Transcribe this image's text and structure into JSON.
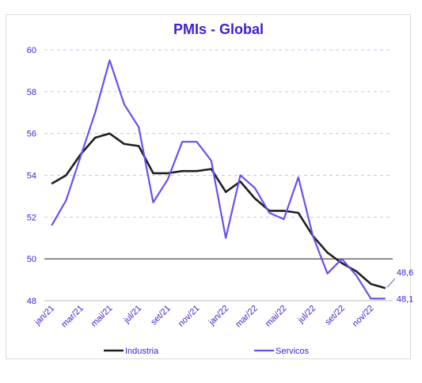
{
  "chart_data": {
    "type": "line",
    "title": "PMIs - Global",
    "xlabel": "",
    "ylabel": "",
    "ylim": [
      48,
      60
    ],
    "yticks": [
      48,
      50,
      52,
      54,
      56,
      58,
      60
    ],
    "reference_line": 50,
    "grid": "horizontal dashed",
    "legend_position": "bottom",
    "x_tick_labels": [
      "jan/21",
      "mar/21",
      "mai/21",
      "jul/21",
      "set/21",
      "nov/21",
      "jan/22",
      "mar/22",
      "mai/22",
      "jul/22",
      "set/22",
      "nov/22"
    ],
    "x": [
      "jan/21",
      "fev/21",
      "mar/21",
      "abr/21",
      "mai/21",
      "jun/21",
      "jul/21",
      "ago/21",
      "set/21",
      "out/21",
      "nov/21",
      "dez/21",
      "jan/22",
      "fev/22",
      "mar/22",
      "abr/22",
      "mai/22",
      "jun/22",
      "jul/22",
      "ago/22",
      "set/22",
      "out/22",
      "nov/22",
      "dez/22"
    ],
    "series": [
      {
        "name": "Industria",
        "color": "#1f1f1f",
        "values": [
          53.6,
          54.0,
          55.0,
          55.8,
          56.0,
          55.5,
          55.4,
          54.1,
          54.1,
          54.2,
          54.2,
          54.3,
          53.2,
          53.7,
          52.9,
          52.3,
          52.3,
          52.2,
          51.1,
          50.3,
          49.8,
          49.4,
          48.8,
          48.6
        ],
        "end_label": "48,6"
      },
      {
        "name": "Servicos",
        "color": "#6a4ff0",
        "values": [
          51.6,
          52.8,
          54.9,
          57.0,
          59.5,
          57.4,
          56.3,
          52.7,
          53.8,
          55.6,
          55.6,
          54.7,
          51.0,
          54.0,
          53.4,
          52.2,
          51.9,
          53.9,
          51.1,
          49.3,
          50.0,
          49.2,
          48.1,
          48.1
        ],
        "end_label": "48,1"
      }
    ]
  }
}
